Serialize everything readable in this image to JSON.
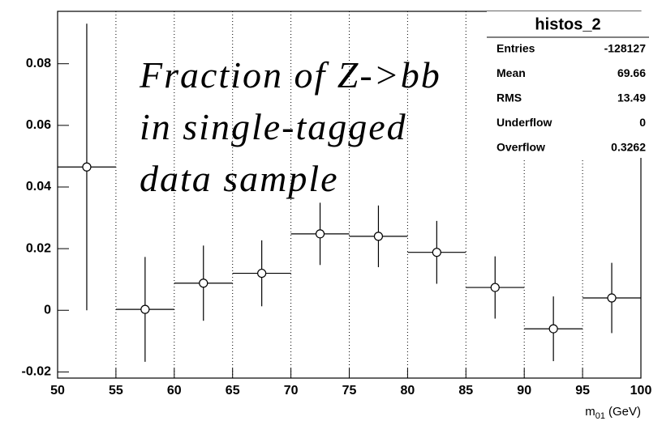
{
  "chart_data": {
    "type": "histogram",
    "bins": [
      50,
      55,
      60,
      65,
      70,
      75,
      80,
      85,
      90,
      95,
      100
    ],
    "values": [
      0.0465,
      0.0003,
      0.0088,
      0.012,
      0.0248,
      0.024,
      0.0188,
      0.0074,
      -0.006,
      0.004
    ],
    "errors": [
      0.0465,
      0.017,
      0.0122,
      0.0107,
      0.0101,
      0.01,
      0.0102,
      0.0101,
      0.0105,
      0.0114
    ],
    "color": "#000000",
    "xlim": [
      50,
      100
    ],
    "xticks": [
      50,
      55,
      60,
      65,
      70,
      75,
      80,
      85,
      90,
      95,
      100
    ],
    "ylim": [
      -0.022,
      0.097
    ],
    "yticks": [
      -0.02,
      0,
      0.02,
      0.04,
      0.06,
      0.08
    ],
    "grid": "x",
    "xlabel": {
      "base": "m",
      "sub": "01",
      "unit": "(GeV)"
    },
    "annotation": [
      "Fraction of Z->bb",
      "in single-tagged",
      "data sample"
    ],
    "stats": {
      "title": "histos_2",
      "rows": [
        [
          "Entries",
          "-128127"
        ],
        [
          "Mean",
          "69.66"
        ],
        [
          "RMS",
          "13.49"
        ],
        [
          "Underflow",
          "0"
        ],
        [
          "Overflow",
          "0.3262"
        ]
      ]
    }
  }
}
